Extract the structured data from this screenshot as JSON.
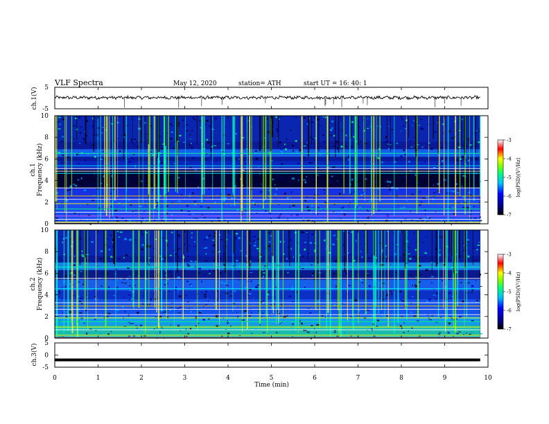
{
  "header": {
    "title": "VLF  Spectra",
    "date": "May 12, 2020",
    "station": "station= ATH",
    "start": "start  UT  =    16: 40: 1"
  },
  "colors": {
    "axis": "#000000",
    "spectrogram_colormap": [
      "#000000",
      "#00008b",
      "#0000ff",
      "#00bfff",
      "#00ff80",
      "#7fff00",
      "#ffff00",
      "#ff0000",
      "#ffffff"
    ]
  },
  "chart_data": [
    {
      "type": "line",
      "panel": "ch1-waveform",
      "ylabel": "ch.1(V)",
      "ylim": [
        -5,
        5
      ],
      "yticks": [
        "5",
        "-5"
      ],
      "series": [
        {
          "values": "noisy waveform near 0 V with occasional negative spikes"
        }
      ]
    },
    {
      "type": "heatmap",
      "panel": "ch1-spectrogram",
      "ylabel_top": "ch.1",
      "ylabel": "Frequency  (kHz)",
      "ylim": [
        0,
        10
      ],
      "yticks": [
        "0",
        "2",
        "4",
        "6",
        "8",
        "10"
      ],
      "colorbar": {
        "label": "log(PSD)(V²/Hz)",
        "ticks": [
          "-3",
          "-4",
          "-5",
          "-6",
          "-7"
        ],
        "range": [
          -7,
          -3
        ]
      }
    },
    {
      "type": "heatmap",
      "panel": "ch2-spectrogram",
      "ylabel_top": "ch.2",
      "ylabel": "Frequency  (kHz)",
      "ylim": [
        0,
        10
      ],
      "yticks": [
        "0",
        "2",
        "4",
        "6",
        "8",
        "10"
      ],
      "colorbar": {
        "label": "log(PSD)(V²/Hz)",
        "ticks": [
          "-3",
          "-4",
          "-5",
          "-6",
          "-7"
        ],
        "range": [
          -7,
          -3
        ]
      }
    },
    {
      "type": "line",
      "panel": "ch3-waveform",
      "ylabel": "ch.3(V)",
      "ylim": [
        -5,
        5
      ],
      "yticks": [
        "5",
        "0",
        "-5"
      ],
      "series": [
        {
          "values": "flat line at about -2 V"
        }
      ]
    }
  ],
  "xaxis": {
    "label": "Time  (min)",
    "ticks": [
      "0",
      "1",
      "2",
      "3",
      "4",
      "5",
      "6",
      "7",
      "8",
      "9",
      "10"
    ],
    "range": [
      0,
      10
    ],
    "data_end": 9.82
  }
}
